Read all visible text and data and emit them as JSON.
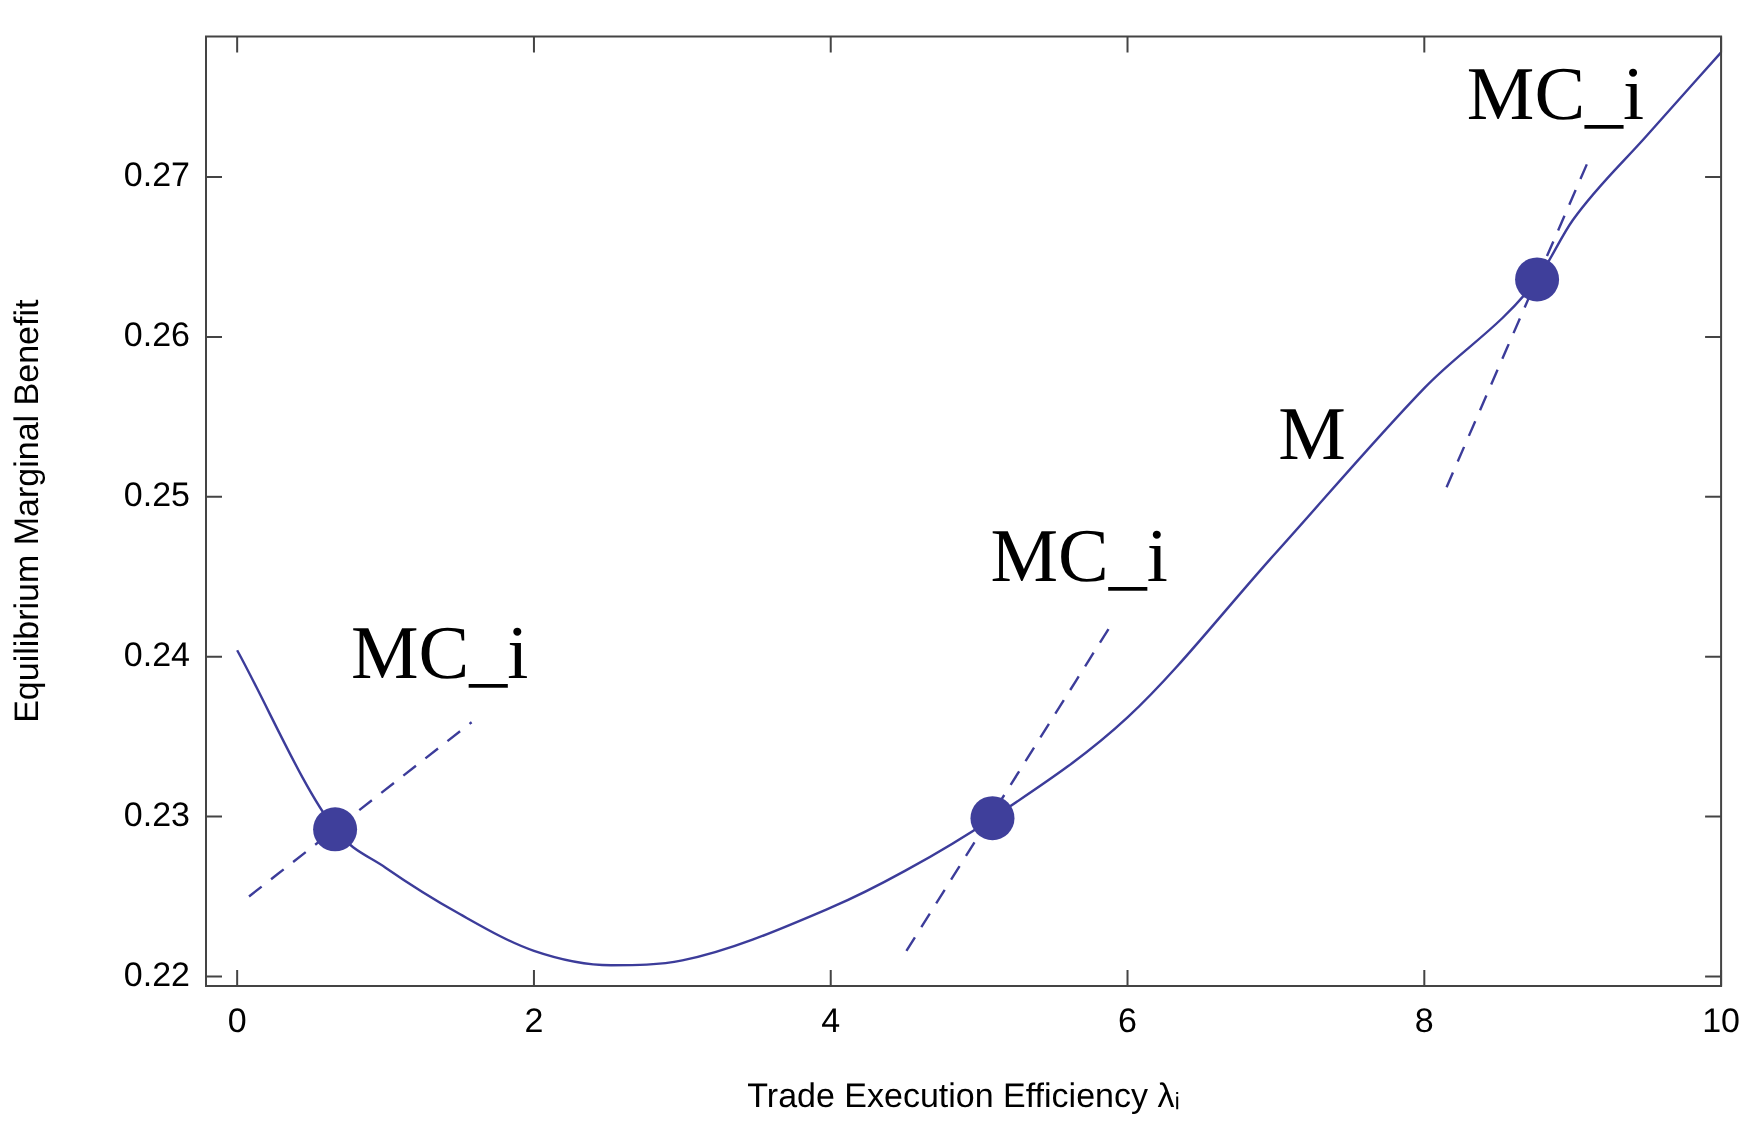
{
  "chart_data": {
    "type": "line",
    "xlabel": "Trade Execution Efficiency λᵢ",
    "ylabel": "Equilibrium Marginal Benefit",
    "xlim": [
      -0.21,
      10
    ],
    "xticks": [
      0,
      2,
      4,
      6,
      8,
      10
    ],
    "ylim": [
      0.2194,
      0.2788
    ],
    "yticks": [
      0.22,
      0.23,
      0.24,
      0.25,
      0.26,
      0.27
    ],
    "grid": false,
    "legend": false,
    "series": [
      {
        "name": "M",
        "color": "#3c3c9a",
        "marker": "none",
        "line_style": "solid",
        "x": [
          0,
          0.66,
          1,
          1.5,
          2,
          2.52,
          3,
          4,
          4.5,
          5.09,
          6,
          7,
          8,
          8.76,
          9,
          9.5,
          10
        ],
        "values": [
          0.2404,
          0.2292,
          0.2268,
          0.2239,
          0.2216,
          0.2207,
          0.221,
          0.2243,
          0.2266,
          0.2299,
          0.2362,
          0.2465,
          0.2568,
          0.2636,
          0.2673,
          0.2726,
          0.2778
        ]
      },
      {
        "type": "line",
        "name": "MC_i",
        "color": "#3c3c9a",
        "marker": "none",
        "line_style": "dashed",
        "x": [
          0.08,
          1.58
        ],
        "values": [
          0.225,
          0.2359
        ]
      },
      {
        "type": "line",
        "name": "MC_i",
        "color": "#3c3c9a",
        "marker": "none",
        "line_style": "dashed",
        "x": [
          4.51,
          5.89
        ],
        "values": [
          0.2216,
          0.242
        ]
      },
      {
        "type": "line",
        "name": "MC_i",
        "color": "#3c3c9a",
        "marker": "none",
        "line_style": "dashed",
        "x": [
          8.15,
          9.1
        ],
        "values": [
          0.2506,
          0.2709
        ]
      },
      {
        "type": "scatter",
        "color": "#3f3f9b",
        "marker": "circle",
        "x": [
          0.66,
          5.09,
          8.76
        ],
        "values": [
          0.2292,
          0.2299,
          0.2636
        ]
      }
    ]
  }
}
